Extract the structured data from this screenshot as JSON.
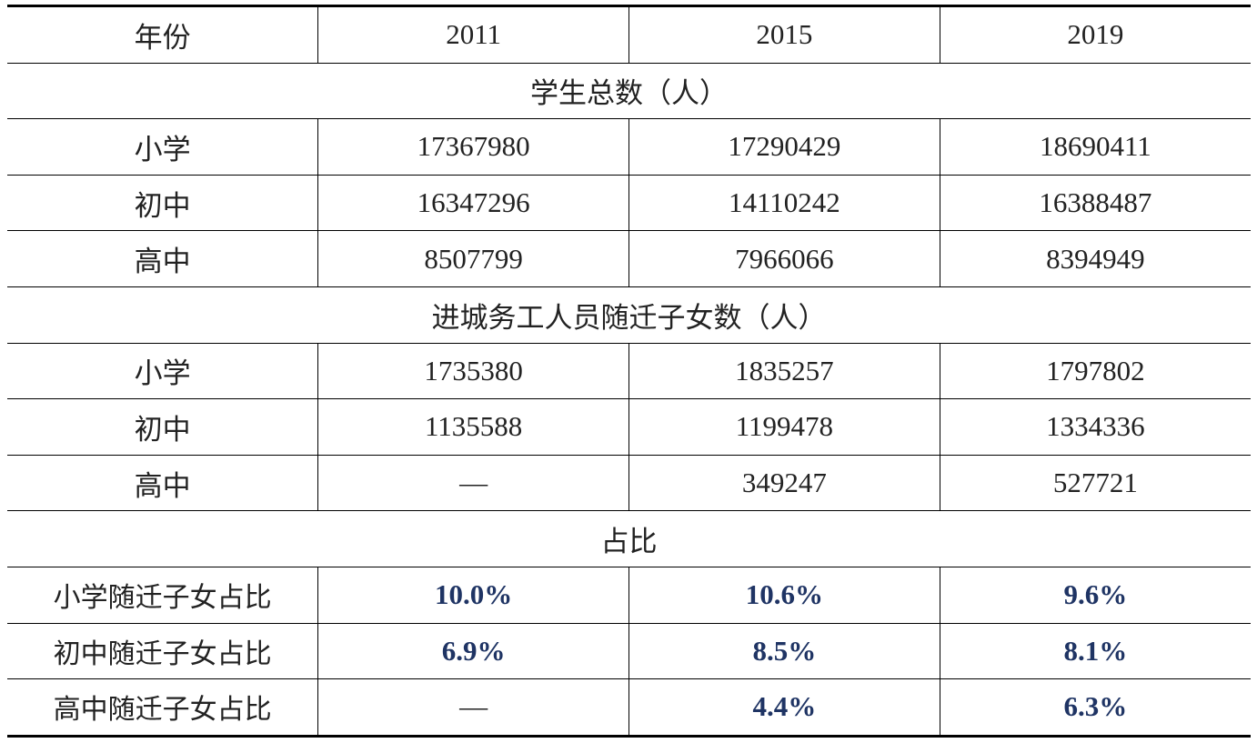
{
  "table": {
    "header": [
      "年份",
      "2011",
      "2015",
      "2019"
    ],
    "sections": [
      {
        "title": "学生总数（人）",
        "rows": [
          [
            "小学",
            "17367980",
            "17290429",
            "18690411"
          ],
          [
            "初中",
            "16347296",
            "14110242",
            "16388487"
          ],
          [
            "高中",
            "8507799",
            "7966066",
            "8394949"
          ]
        ]
      },
      {
        "title": "进城务工人员随迁子女数（人）",
        "rows": [
          [
            "小学",
            "1735380",
            "1835257",
            "1797802"
          ],
          [
            "初中",
            "1135588",
            "1199478",
            "1334336"
          ],
          [
            "高中",
            "—",
            "349247",
            "527721"
          ]
        ]
      },
      {
        "title": "占比",
        "rows": [
          [
            "小学随迁子女占比",
            "10.0%",
            "10.6%",
            "9.6%"
          ],
          [
            "初中随迁子女占比",
            "6.9%",
            "8.5%",
            "8.1%"
          ],
          [
            "高中随迁子女占比",
            "—",
            "4.4%",
            "6.3%"
          ]
        ]
      }
    ]
  }
}
